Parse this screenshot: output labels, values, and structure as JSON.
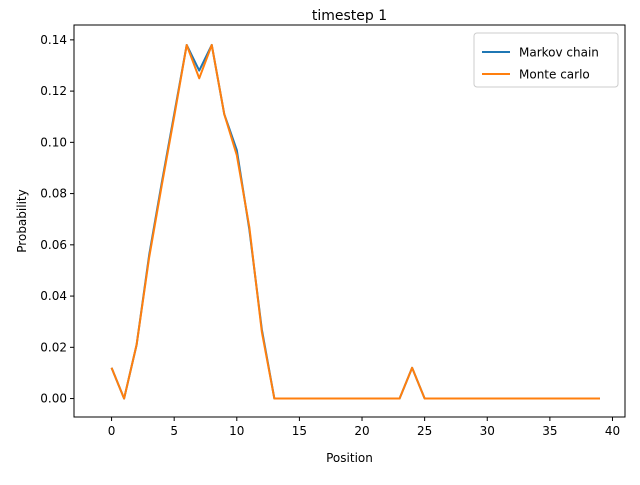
{
  "chart_data": {
    "type": "line",
    "title": "timestep 1",
    "xlabel": "Position",
    "ylabel": "Probability",
    "xlim": [
      -3,
      41
    ],
    "ylim": [
      -0.0072,
      0.1458
    ],
    "xticks": [
      0,
      5,
      10,
      15,
      20,
      25,
      30,
      35,
      40
    ],
    "xtick_labels": [
      "0",
      "5",
      "10",
      "15",
      "20",
      "25",
      "30",
      "35",
      "40"
    ],
    "yticks": [
      0,
      0.02,
      0.04,
      0.06,
      0.08,
      0.1,
      0.12,
      0.14
    ],
    "ytick_labels": [
      "0.00",
      "0.02",
      "0.04",
      "0.06",
      "0.08",
      "0.10",
      "0.12",
      "0.14"
    ],
    "grid": false,
    "legend_position": "top-right",
    "x": [
      0,
      1,
      2,
      3,
      4,
      5,
      6,
      7,
      8,
      9,
      10,
      11,
      12,
      13,
      14,
      15,
      16,
      17,
      18,
      19,
      20,
      21,
      22,
      23,
      24,
      25,
      26,
      27,
      28,
      29,
      30,
      31,
      32,
      33,
      34,
      35,
      36,
      37,
      38,
      39
    ],
    "series": [
      {
        "name": "Markov chain",
        "color": "#1f77b4",
        "values": [
          0.012,
          0,
          0.021,
          0.056,
          0.084,
          0.111,
          0.138,
          0.128,
          0.138,
          0.111,
          0.097,
          0.066,
          0.027,
          0,
          0,
          0,
          0,
          0,
          0,
          0,
          0,
          0,
          0,
          0,
          0.012,
          0,
          0,
          0,
          0,
          0,
          0,
          0,
          0,
          0,
          0,
          0,
          0,
          0,
          0,
          0
        ]
      },
      {
        "name": "Monte carlo",
        "color": "#ff7f0e",
        "values": [
          0.012,
          0,
          0.021,
          0.055,
          0.083,
          0.11,
          0.138,
          0.125,
          0.138,
          0.111,
          0.095,
          0.067,
          0.026,
          0,
          0,
          0,
          0,
          0,
          0,
          0,
          0,
          0,
          0,
          0,
          0.012,
          0,
          0,
          0,
          0,
          0,
          0,
          0,
          0,
          0,
          0,
          0,
          0,
          0,
          0,
          0
        ]
      }
    ]
  }
}
